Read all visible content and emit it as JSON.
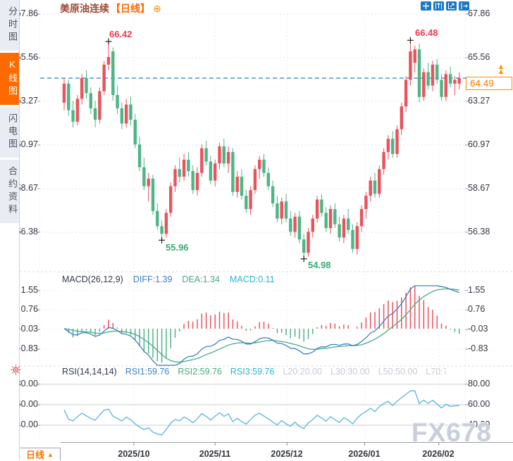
{
  "app": {
    "watermark": "FX678"
  },
  "sidebar": {
    "tabs": [
      {
        "label": "分时图",
        "active": false
      },
      {
        "label": "K线图",
        "active": true
      },
      {
        "label": "闪电图",
        "active": false
      },
      {
        "label": "合约资料",
        "active": false
      }
    ]
  },
  "header": {
    "title": "美原油连续",
    "timeframe": "【日线】",
    "add_icon": "⊕"
  },
  "toolbar": {
    "icons": [
      "crosshair",
      "axis-scale",
      "chart-scale",
      "exit"
    ]
  },
  "main_chart": {
    "price_axis_labels": [
      "67.86",
      "65.56",
      "63.27",
      "60.97",
      "58.67",
      "56.38"
    ],
    "current_price": "64.49",
    "annotations": {
      "high1": "66.42",
      "high2": "66.48",
      "low1": "55.96",
      "low2": "54.98"
    }
  },
  "macd_panel": {
    "title": "MACD(26,12,9)",
    "diff": "DIFF:1.39",
    "dea": "DEA:1.34",
    "macd": "MACD:0.11",
    "axis_labels": [
      "1.55",
      "0.76",
      "-0.03",
      "-0.83"
    ]
  },
  "rsi_panel": {
    "title": "RSI(14,14,14)",
    "rsi1": "RSI1:59.76",
    "rsi2": "RSI2:59.76",
    "rsi3": "RSI3:59.76",
    "l20": "L20:20.00",
    "l30": "L30:30.00",
    "l50": "L50:50.00",
    "l70": "L70:7",
    "axis_labels": [
      "80.00",
      "60.00",
      "40.00"
    ]
  },
  "bottom_bar": {
    "timeframe": "日线",
    "arrow": "▲",
    "x_labels": [
      "2025/10",
      "2025/11",
      "2025/12",
      "2026/01",
      "2026/02"
    ]
  },
  "colors": {
    "up_candle": "#e9535c",
    "down_candle": "#4db586",
    "accent_orange": "#ff6600",
    "dashed_price_line": "#1f7fd6",
    "diff_line": "#3d7fc4",
    "dea_line": "#47ab80",
    "rsi_line": "#56b4dc",
    "grid": "#e4e6ea"
  },
  "chart_data": {
    "type": "candlestick",
    "title": "美原油连续【日线】 (US Crude Oil Continuous, Daily)",
    "ylim": [
      54.5,
      68.3
    ],
    "price_gridlines": [
      67.86,
      65.56,
      63.27,
      60.97,
      58.67,
      56.38
    ],
    "current_price": 64.49,
    "month_ticks": [
      {
        "label": "2025/10",
        "index": 15.7
      },
      {
        "label": "2025/11",
        "index": 34.0
      },
      {
        "label": "2025/12",
        "index": 50.2
      },
      {
        "label": "2026/01",
        "index": 67.7
      },
      {
        "label": "2026/02",
        "index": 84.4
      }
    ],
    "markers": [
      {
        "type": "high",
        "index": 10,
        "price": 66.42,
        "label": "66.42"
      },
      {
        "type": "low",
        "index": 22,
        "price": 55.96,
        "label": "55.96"
      },
      {
        "type": "low",
        "index": 54,
        "price": 54.98,
        "label": "54.98"
      },
      {
        "type": "high",
        "index": 78,
        "price": 66.48,
        "label": "66.48"
      }
    ],
    "indicators": {
      "macd": {
        "fast": 12,
        "slow": 26,
        "signal": 9,
        "diff": 1.39,
        "dea": 1.34,
        "macd": 0.11,
        "axis": [
          1.55,
          0.76,
          -0.03,
          -0.83
        ]
      },
      "rsi": {
        "periods": [
          14,
          14,
          14
        ],
        "values": [
          59.76,
          59.76,
          59.76
        ],
        "axis": [
          80,
          60,
          40
        ]
      }
    },
    "ohlc": [
      [
        63.2,
        64.5,
        62.8,
        64.2
      ],
      [
        64.2,
        64.4,
        62.5,
        62.8
      ],
      [
        62.8,
        63.3,
        61.9,
        62.2
      ],
      [
        62.2,
        63.6,
        62.0,
        63.4
      ],
      [
        63.4,
        64.7,
        63.1,
        64.5
      ],
      [
        64.5,
        64.9,
        63.4,
        63.7
      ],
      [
        63.7,
        64.0,
        62.6,
        62.9
      ],
      [
        62.9,
        63.3,
        61.9,
        62.3
      ],
      [
        62.3,
        64.0,
        62.1,
        63.8
      ],
      [
        63.8,
        65.4,
        63.6,
        65.2
      ],
      [
        65.2,
        66.42,
        64.9,
        65.6
      ],
      [
        65.9,
        66.1,
        63.3,
        63.6
      ],
      [
        63.6,
        64.1,
        62.6,
        62.9
      ],
      [
        62.9,
        63.2,
        61.8,
        62.1
      ],
      [
        62.1,
        63.4,
        61.9,
        63.1
      ],
      [
        63.1,
        63.5,
        62.0,
        62.3
      ],
      [
        62.3,
        62.6,
        60.8,
        61.0
      ],
      [
        61.0,
        61.4,
        59.6,
        59.8
      ],
      [
        59.8,
        60.3,
        58.6,
        58.8
      ],
      [
        58.8,
        59.5,
        58.0,
        59.2
      ],
      [
        59.2,
        59.4,
        57.3,
        57.5
      ],
      [
        57.5,
        57.9,
        56.5,
        56.7
      ],
      [
        56.7,
        57.0,
        55.96,
        56.3
      ],
      [
        56.3,
        57.6,
        56.1,
        57.4
      ],
      [
        57.4,
        59.0,
        57.2,
        58.8
      ],
      [
        58.8,
        59.9,
        58.5,
        59.7
      ],
      [
        59.7,
        60.3,
        59.0,
        59.3
      ],
      [
        59.3,
        60.5,
        59.1,
        60.2
      ],
      [
        60.2,
        60.6,
        59.3,
        59.6
      ],
      [
        59.6,
        59.9,
        58.4,
        58.6
      ],
      [
        58.6,
        59.8,
        58.3,
        59.5
      ],
      [
        59.5,
        61.0,
        59.3,
        60.8
      ],
      [
        60.8,
        61.2,
        59.9,
        60.1
      ],
      [
        60.1,
        60.4,
        58.9,
        59.1
      ],
      [
        59.1,
        60.2,
        58.8,
        60.0
      ],
      [
        60.0,
        61.1,
        59.7,
        60.9
      ],
      [
        60.9,
        61.3,
        59.8,
        60.0
      ],
      [
        60.0,
        60.9,
        59.5,
        60.6
      ],
      [
        60.6,
        60.8,
        58.3,
        58.5
      ],
      [
        58.5,
        59.6,
        58.2,
        59.3
      ],
      [
        59.3,
        59.7,
        58.1,
        58.3
      ],
      [
        58.3,
        58.6,
        57.4,
        57.6
      ],
      [
        57.6,
        58.8,
        57.3,
        58.6
      ],
      [
        58.6,
        59.9,
        58.4,
        59.7
      ],
      [
        59.7,
        60.4,
        59.2,
        60.2
      ],
      [
        60.2,
        60.5,
        59.3,
        59.5
      ],
      [
        59.5,
        59.8,
        58.6,
        58.8
      ],
      [
        58.8,
        59.1,
        57.7,
        57.9
      ],
      [
        57.9,
        58.3,
        56.9,
        57.1
      ],
      [
        57.1,
        58.2,
        56.8,
        58.0
      ],
      [
        58.0,
        58.4,
        56.9,
        57.1
      ],
      [
        57.1,
        57.5,
        56.2,
        56.4
      ],
      [
        56.4,
        57.4,
        56.1,
        57.2
      ],
      [
        57.2,
        57.5,
        55.8,
        56.0
      ],
      [
        56.0,
        56.3,
        54.98,
        55.3
      ],
      [
        55.3,
        56.6,
        55.1,
        56.4
      ],
      [
        56.4,
        57.3,
        56.1,
        57.1
      ],
      [
        57.1,
        58.3,
        56.9,
        58.1
      ],
      [
        58.1,
        58.4,
        57.2,
        57.4
      ],
      [
        57.4,
        57.7,
        56.4,
        56.6
      ],
      [
        56.6,
        57.8,
        56.3,
        57.6
      ],
      [
        57.6,
        57.9,
        56.6,
        56.8
      ],
      [
        56.8,
        57.2,
        55.9,
        56.1
      ],
      [
        56.1,
        57.3,
        55.8,
        57.1
      ],
      [
        57.1,
        57.6,
        56.3,
        56.5
      ],
      [
        56.5,
        56.8,
        55.3,
        55.5
      ],
      [
        55.5,
        56.9,
        55.2,
        56.7
      ],
      [
        56.7,
        57.8,
        56.4,
        57.6
      ],
      [
        57.6,
        58.5,
        57.1,
        58.3
      ],
      [
        58.3,
        59.3,
        58.0,
        59.1
      ],
      [
        59.1,
        59.5,
        58.2,
        58.4
      ],
      [
        58.4,
        59.9,
        58.2,
        59.7
      ],
      [
        59.7,
        60.8,
        59.4,
        60.6
      ],
      [
        60.6,
        61.5,
        60.2,
        61.3
      ],
      [
        61.3,
        61.7,
        60.3,
        60.5
      ],
      [
        60.5,
        62.0,
        60.3,
        61.8
      ],
      [
        61.8,
        63.2,
        61.5,
        63.0
      ],
      [
        63.0,
        64.6,
        62.7,
        64.4
      ],
      [
        64.4,
        66.48,
        64.1,
        65.9
      ],
      [
        65.3,
        66.2,
        64.8,
        66.0
      ],
      [
        66.0,
        66.3,
        63.2,
        63.5
      ],
      [
        63.5,
        65.0,
        63.3,
        64.8
      ],
      [
        64.8,
        65.3,
        63.9,
        64.1
      ],
      [
        64.1,
        65.4,
        63.8,
        65.2
      ],
      [
        65.2,
        65.5,
        64.2,
        64.4
      ],
      [
        64.4,
        64.7,
        63.3,
        63.5
      ],
      [
        63.5,
        64.9,
        63.3,
        64.7
      ],
      [
        64.7,
        65.1,
        64.0,
        64.2
      ],
      [
        64.2,
        64.6,
        63.6,
        64.4
      ],
      [
        64.2,
        64.8,
        63.9,
        64.49
      ]
    ]
  }
}
